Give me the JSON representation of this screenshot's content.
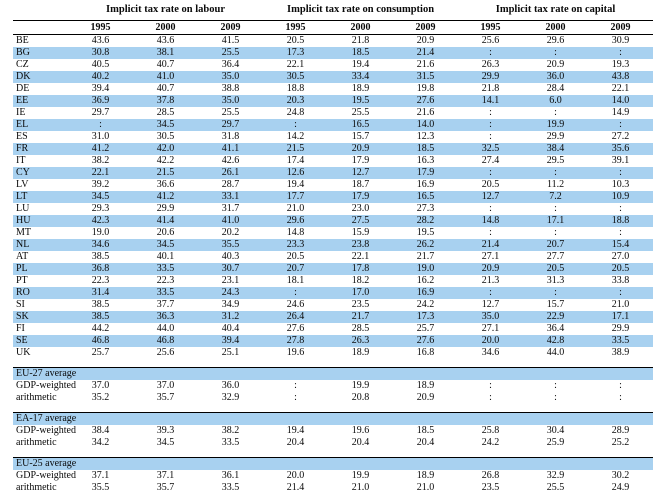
{
  "table": {
    "groups": [
      "Implicit tax rate on labour",
      "Implicit tax rate on consumption",
      "Implicit tax rate on capital"
    ],
    "years": [
      "1995",
      "2000",
      "2009"
    ],
    "highlight_color": "#a8d1f0",
    "missing_symbol": ":",
    "countries": [
      {
        "code": "BE",
        "values": [
          "43.6",
          "43.6",
          "41.5",
          "20.5",
          "21.8",
          "20.9",
          "25.6",
          "29.6",
          "30.9"
        ]
      },
      {
        "code": "BG",
        "values": [
          "30.8",
          "38.1",
          "25.5",
          "17.3",
          "18.5",
          "21.4",
          ":",
          ":",
          ":"
        ]
      },
      {
        "code": "CZ",
        "values": [
          "40.5",
          "40.7",
          "36.4",
          "22.1",
          "19.4",
          "21.6",
          "26.3",
          "20.9",
          "19.3"
        ]
      },
      {
        "code": "DK",
        "values": [
          "40.2",
          "41.0",
          "35.0",
          "30.5",
          "33.4",
          "31.5",
          "29.9",
          "36.0",
          "43.8"
        ]
      },
      {
        "code": "DE",
        "values": [
          "39.4",
          "40.7",
          "38.8",
          "18.8",
          "18.9",
          "19.8",
          "21.8",
          "28.4",
          "22.1"
        ]
      },
      {
        "code": "EE",
        "values": [
          "36.9",
          "37.8",
          "35.0",
          "20.3",
          "19.5",
          "27.6",
          "14.1",
          "6.0",
          "14.0"
        ]
      },
      {
        "code": "IE",
        "values": [
          "29.7",
          "28.5",
          "25.5",
          "24.8",
          "25.5",
          "21.6",
          ":",
          ":",
          "14.9"
        ]
      },
      {
        "code": "EL",
        "values": [
          ":",
          "34.5",
          "29.7",
          ":",
          "16.5",
          "14.0",
          ":",
          "19.9",
          ":"
        ]
      },
      {
        "code": "ES",
        "values": [
          "31.0",
          "30.5",
          "31.8",
          "14.2",
          "15.7",
          "12.3",
          ":",
          "29.9",
          "27.2"
        ]
      },
      {
        "code": "FR",
        "values": [
          "41.2",
          "42.0",
          "41.1",
          "21.5",
          "20.9",
          "18.5",
          "32.5",
          "38.4",
          "35.6"
        ]
      },
      {
        "code": "IT",
        "values": [
          "38.2",
          "42.2",
          "42.6",
          "17.4",
          "17.9",
          "16.3",
          "27.4",
          "29.5",
          "39.1"
        ]
      },
      {
        "code": "CY",
        "values": [
          "22.1",
          "21.5",
          "26.1",
          "12.6",
          "12.7",
          "17.9",
          ":",
          ":",
          ":"
        ]
      },
      {
        "code": "LV",
        "values": [
          "39.2",
          "36.6",
          "28.7",
          "19.4",
          "18.7",
          "16.9",
          "20.5",
          "11.2",
          "10.3"
        ]
      },
      {
        "code": "LT",
        "values": [
          "34.5",
          "41.2",
          "33.1",
          "17.7",
          "17.9",
          "16.5",
          "12.7",
          "7.2",
          "10.9"
        ]
      },
      {
        "code": "LU",
        "values": [
          "29.3",
          "29.9",
          "31.7",
          "21.0",
          "23.0",
          "27.3",
          ":",
          ":",
          ":"
        ]
      },
      {
        "code": "HU",
        "values": [
          "42.3",
          "41.4",
          "41.0",
          "29.6",
          "27.5",
          "28.2",
          "14.8",
          "17.1",
          "18.8"
        ]
      },
      {
        "code": "MT",
        "values": [
          "19.0",
          "20.6",
          "20.2",
          "14.8",
          "15.9",
          "19.5",
          ":",
          ":",
          ":"
        ]
      },
      {
        "code": "NL",
        "values": [
          "34.6",
          "34.5",
          "35.5",
          "23.3",
          "23.8",
          "26.2",
          "21.4",
          "20.7",
          "15.4"
        ]
      },
      {
        "code": "AT",
        "values": [
          "38.5",
          "40.1",
          "40.3",
          "20.5",
          "22.1",
          "21.7",
          "27.1",
          "27.7",
          "27.0"
        ]
      },
      {
        "code": "PL",
        "values": [
          "36.8",
          "33.5",
          "30.7",
          "20.7",
          "17.8",
          "19.0",
          "20.9",
          "20.5",
          "20.5"
        ]
      },
      {
        "code": "PT",
        "values": [
          "22.3",
          "22.3",
          "23.1",
          "18.1",
          "18.2",
          "16.2",
          "21.3",
          "31.3",
          "33.8"
        ]
      },
      {
        "code": "RO",
        "values": [
          "31.4",
          "33.5",
          "24.3",
          ":",
          "17.0",
          "16.9",
          ":",
          ":",
          ":"
        ]
      },
      {
        "code": "SI",
        "values": [
          "38.5",
          "37.7",
          "34.9",
          "24.6",
          "23.5",
          "24.2",
          "12.7",
          "15.7",
          "21.0"
        ]
      },
      {
        "code": "SK",
        "values": [
          "38.5",
          "36.3",
          "31.2",
          "26.4",
          "21.7",
          "17.3",
          "35.0",
          "22.9",
          "17.1"
        ]
      },
      {
        "code": "FI",
        "values": [
          "44.2",
          "44.0",
          "40.4",
          "27.6",
          "28.5",
          "25.7",
          "27.1",
          "36.4",
          "29.9"
        ]
      },
      {
        "code": "SE",
        "values": [
          "46.8",
          "46.8",
          "39.4",
          "27.8",
          "26.3",
          "27.6",
          "20.0",
          "42.8",
          "33.5"
        ]
      },
      {
        "code": "UK",
        "values": [
          "25.7",
          "25.6",
          "25.1",
          "19.6",
          "18.9",
          "16.8",
          "34.6",
          "44.0",
          "38.9"
        ]
      }
    ],
    "sections": [
      {
        "title": "EU-27 average",
        "rows": [
          {
            "label": "GDP-weighted",
            "values": [
              "37.0",
              "37.0",
              "36.0",
              ":",
              "19.9",
              "18.9",
              ":",
              ":",
              ":"
            ]
          },
          {
            "label": "arithmetic",
            "values": [
              "35.2",
              "35.7",
              "32.9",
              ":",
              "20.8",
              "20.9",
              ":",
              ":",
              ":"
            ]
          }
        ]
      },
      {
        "title": "EA-17 average",
        "rows": [
          {
            "label": "GDP-weighted",
            "values": [
              "38.4",
              "39.3",
              "38.2",
              "19.4",
              "19.6",
              "18.5",
              "25.8",
              "30.4",
              "28.9"
            ]
          },
          {
            "label": "arithmetic",
            "values": [
              "34.2",
              "34.5",
              "33.5",
              "20.4",
              "20.4",
              "20.4",
              "24.2",
              "25.9",
              "25.2"
            ]
          }
        ]
      },
      {
        "title": "EU-25 average",
        "rows": [
          {
            "label": "GDP-weighted",
            "values": [
              "37.1",
              "37.1",
              "36.1",
              "20.0",
              "19.9",
              "18.9",
              "26.8",
              "32.9",
              "30.2"
            ]
          },
          {
            "label": "arithmetic",
            "values": [
              "35.5",
              "35.7",
              "33.5",
              "21.4",
              "21.0",
              "21.0",
              "23.5",
              "25.5",
              "24.9"
            ]
          }
        ]
      }
    ]
  }
}
